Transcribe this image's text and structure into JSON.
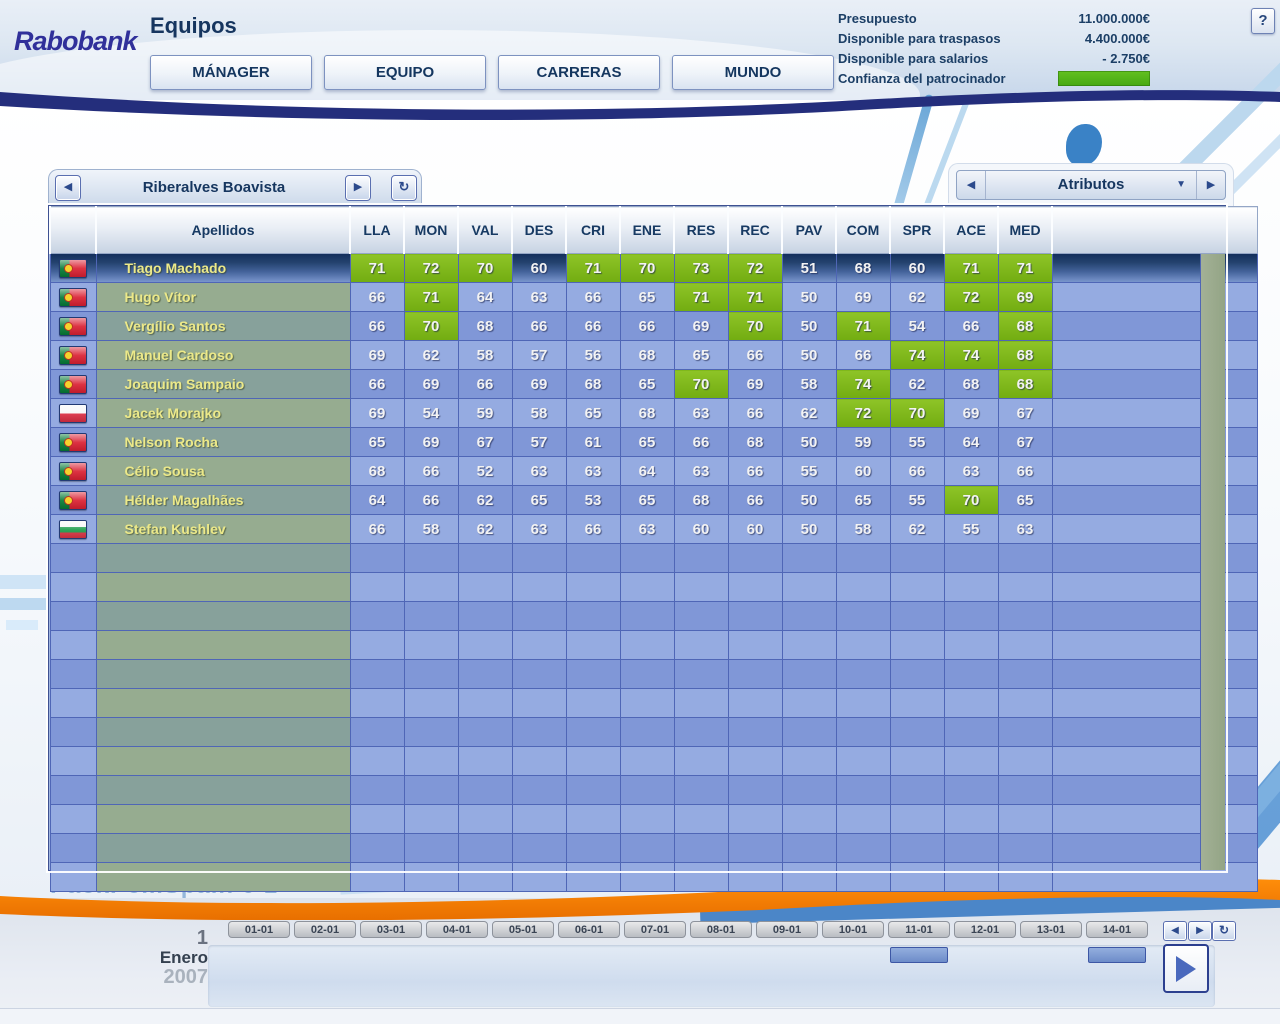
{
  "header": {
    "logo_text": "Rabobank",
    "title": "Equipos",
    "help_label": "?",
    "tabs": [
      "MÁNAGER",
      "EQUIPO",
      "CARRERAS",
      "MUNDO"
    ],
    "finance": [
      {
        "label": "Presupuesto",
        "value": "11.000.000€",
        "type": "text"
      },
      {
        "label": "Disponible para traspasos",
        "value": "4.400.000€",
        "type": "text"
      },
      {
        "label": "Disponible para salarios",
        "value": "- 2.750€",
        "type": "text"
      },
      {
        "label": "Confianza del patrocinador",
        "value": "",
        "type": "bar"
      }
    ]
  },
  "icons": {
    "prev": "◀",
    "next": "▶",
    "dropdown": "▼",
    "reset": "↻",
    "play": "play-triangle"
  },
  "team_selector": {
    "label": "Riberalves Boavista"
  },
  "attribute_selector": {
    "label": "Atributos"
  },
  "table": {
    "name_header": "Apellidos",
    "columns": [
      "LLA",
      "MON",
      "VAL",
      "DES",
      "CRI",
      "ENE",
      "RES",
      "REC",
      "PAV",
      "COM",
      "SPR",
      "ACE",
      "MED"
    ],
    "riders": [
      {
        "name": "Tiago Machado",
        "nation": "pt",
        "selected": true,
        "values": [
          71,
          72,
          70,
          60,
          71,
          70,
          73,
          72,
          51,
          68,
          60,
          71,
          71
        ],
        "hi": [
          1,
          1,
          1,
          0,
          1,
          1,
          1,
          1,
          0,
          0,
          0,
          1,
          1
        ]
      },
      {
        "name": "Hugo Vítor",
        "nation": "pt",
        "selected": false,
        "values": [
          66,
          71,
          64,
          63,
          66,
          65,
          71,
          71,
          50,
          69,
          62,
          72,
          69
        ],
        "hi": [
          0,
          1,
          0,
          0,
          0,
          0,
          1,
          1,
          0,
          0,
          0,
          1,
          1
        ]
      },
      {
        "name": "Vergílio Santos",
        "nation": "pt",
        "selected": false,
        "values": [
          66,
          70,
          68,
          66,
          66,
          66,
          69,
          70,
          50,
          71,
          54,
          66,
          68
        ],
        "hi": [
          0,
          1,
          0,
          0,
          0,
          0,
          0,
          1,
          0,
          1,
          0,
          0,
          1
        ]
      },
      {
        "name": "Manuel Cardoso",
        "nation": "pt",
        "selected": false,
        "values": [
          69,
          62,
          58,
          57,
          56,
          68,
          65,
          66,
          50,
          66,
          74,
          74,
          68
        ],
        "hi": [
          0,
          0,
          0,
          0,
          0,
          0,
          0,
          0,
          0,
          0,
          1,
          1,
          1
        ]
      },
      {
        "name": "Joaquim Sampaio",
        "nation": "pt",
        "selected": false,
        "values": [
          66,
          69,
          66,
          69,
          68,
          65,
          70,
          69,
          58,
          74,
          62,
          68,
          68
        ],
        "hi": [
          0,
          0,
          0,
          0,
          0,
          0,
          1,
          0,
          0,
          1,
          0,
          0,
          1
        ]
      },
      {
        "name": "Jacek Morajko",
        "nation": "pl",
        "selected": false,
        "values": [
          69,
          54,
          59,
          58,
          65,
          68,
          63,
          66,
          62,
          72,
          70,
          69,
          67
        ],
        "hi": [
          0,
          0,
          0,
          0,
          0,
          0,
          0,
          0,
          0,
          1,
          1,
          0,
          0
        ]
      },
      {
        "name": "Nelson Rocha",
        "nation": "pt",
        "selected": false,
        "values": [
          65,
          69,
          67,
          57,
          61,
          65,
          66,
          68,
          50,
          59,
          55,
          64,
          67
        ],
        "hi": [
          0,
          0,
          0,
          0,
          0,
          0,
          0,
          0,
          0,
          0,
          0,
          0,
          0
        ]
      },
      {
        "name": "Célio Sousa",
        "nation": "pt",
        "selected": false,
        "values": [
          68,
          66,
          52,
          63,
          63,
          64,
          63,
          66,
          55,
          60,
          66,
          63,
          66
        ],
        "hi": [
          0,
          0,
          0,
          0,
          0,
          0,
          0,
          0,
          0,
          0,
          0,
          0,
          0
        ]
      },
      {
        "name": "Hélder Magalhães",
        "nation": "pt",
        "selected": false,
        "values": [
          64,
          66,
          62,
          65,
          53,
          65,
          68,
          66,
          50,
          65,
          55,
          70,
          65
        ],
        "hi": [
          0,
          0,
          0,
          0,
          0,
          0,
          0,
          0,
          0,
          0,
          0,
          1,
          0
        ]
      },
      {
        "name": "Stefan Kushlev",
        "nation": "bg",
        "selected": false,
        "values": [
          66,
          58,
          62,
          63,
          66,
          63,
          60,
          60,
          50,
          58,
          62,
          55,
          63
        ],
        "hi": [
          0,
          0,
          0,
          0,
          0,
          0,
          0,
          0,
          0,
          0,
          0,
          0,
          0
        ]
      }
    ],
    "empty_row_count": 12
  },
  "watermark": "PackPcmSpain 0 1",
  "timeline": {
    "dates": [
      "01-01",
      "02-01",
      "03-01",
      "04-01",
      "05-01",
      "06-01",
      "07-01",
      "08-01",
      "09-01",
      "10-01",
      "11-01",
      "12-01",
      "13-01",
      "14-01"
    ],
    "event_dates": [
      "11-01",
      "14-01"
    ],
    "day": "1",
    "month": "Enero",
    "year": "2007"
  },
  "colors": {
    "navy_wave": "#242e7c",
    "orange_swoosh": "#f07d00",
    "stat_highlight_green": "#7cb41c",
    "confidence_bar_green": "#46a812",
    "row_blue_light": "#95abe1",
    "row_blue_dark": "#8097d7",
    "name_green_light": "#96ac90",
    "name_green_dark": "#87a19b"
  }
}
